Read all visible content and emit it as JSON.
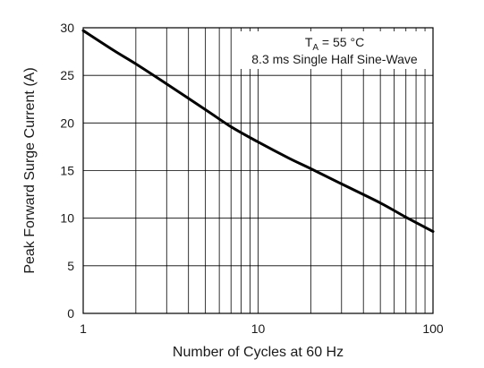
{
  "chart_data": {
    "type": "line",
    "xscale": "log",
    "xlim": [
      1,
      100
    ],
    "ylim": [
      0,
      30
    ],
    "grid": true,
    "xlabel": "Number of Cycles at 60 Hz",
    "ylabel": "Peak Forward Surge Current (A)",
    "xticks": [
      1,
      10,
      100
    ],
    "xtick_labels": [
      "1",
      "10",
      "100"
    ],
    "yticks": [
      0,
      5,
      10,
      15,
      20,
      25,
      30
    ],
    "ytick_labels": [
      "0",
      "5",
      "10",
      "15",
      "20",
      "25",
      "30"
    ],
    "annotation": {
      "line1_main": "T",
      "line1_sub": "A",
      "line1_rest": " = 55 °C",
      "line2": "8.3 ms Single Half Sine-Wave"
    },
    "series": [
      {
        "x": [
          1,
          1.5,
          2,
          3,
          5,
          7,
          10,
          15,
          20,
          30,
          50,
          70,
          100
        ],
        "y": [
          29.7,
          27.6,
          26.2,
          24.1,
          21.4,
          19.6,
          18.0,
          16.3,
          15.2,
          13.6,
          11.6,
          10.1,
          8.6
        ]
      }
    ],
    "colors": {
      "line": "#000000",
      "grid": "#000000",
      "text": "#1a1a1a"
    }
  }
}
